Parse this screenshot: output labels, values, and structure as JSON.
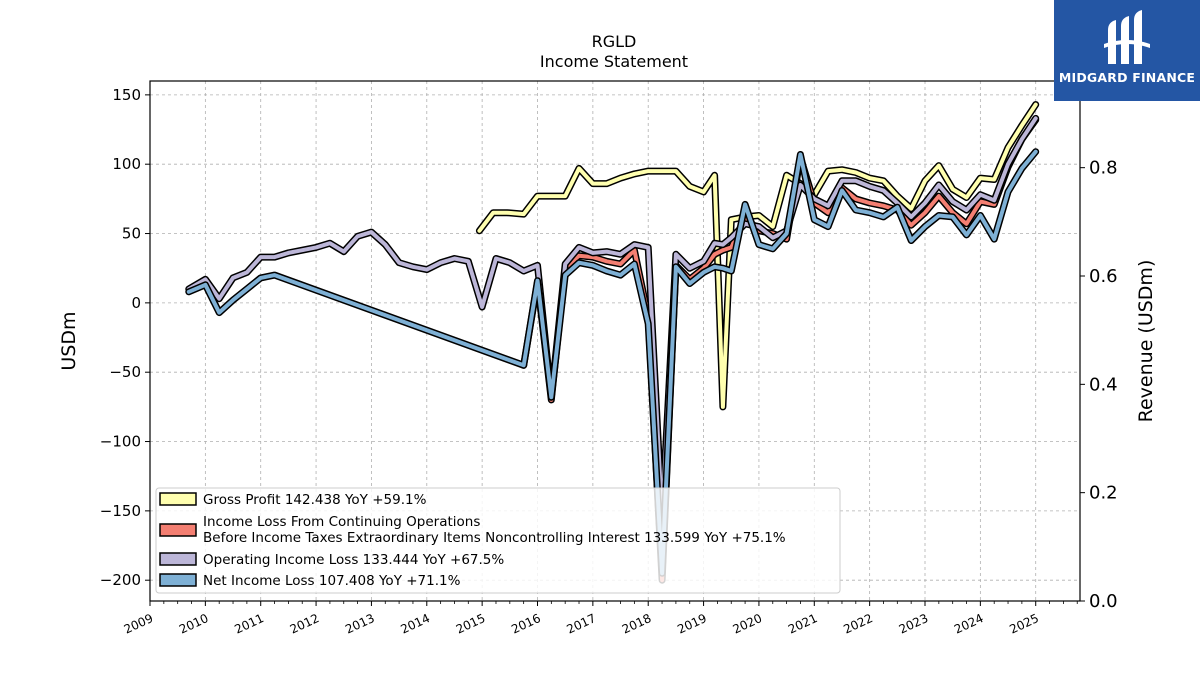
{
  "brand": {
    "name": "MIDGARD FINANCE",
    "color": "#2456a4"
  },
  "chart_data": {
    "type": "line",
    "title": "RGLD",
    "subtitle": "Income Statement",
    "ylabel": "USDm",
    "y2label": "Revenue (USDm)",
    "ylim": [
      -215,
      160
    ],
    "y2lim": [
      0.0,
      0.96
    ],
    "xlim": [
      2009.0,
      2025.8
    ],
    "yticks": [
      150,
      100,
      50,
      0,
      -50,
      -100,
      -150,
      -200
    ],
    "y2ticks": [
      0.0,
      0.2,
      0.4,
      0.6,
      0.8
    ],
    "xticks": [
      "2009",
      "2010",
      "2011",
      "2012",
      "2013",
      "2014",
      "2015",
      "2016",
      "2017",
      "2018",
      "2019",
      "2020",
      "2021",
      "2022",
      "2023",
      "2024",
      "2025"
    ],
    "grid": true,
    "legend_position": "lower-left",
    "series": [
      {
        "name": "Gross Profit",
        "legend": "Gross Profit  142.438 YoY +59.1%",
        "color": "#ffffaf",
        "x": [
          2014.95,
          2015.2,
          2015.45,
          2015.75,
          2016.0,
          2016.25,
          2016.5,
          2016.75,
          2017.0,
          2017.25,
          2017.5,
          2017.75,
          2018.0,
          2018.25,
          2018.5,
          2018.75,
          2019.0,
          2019.2,
          2019.35,
          2019.5,
          2019.75,
          2020.0,
          2020.25,
          2020.5,
          2020.75,
          2021.0,
          2021.25,
          2021.5,
          2021.75,
          2022.0,
          2022.25,
          2022.5,
          2022.75,
          2023.0,
          2023.25,
          2023.5,
          2023.75,
          2024.0,
          2024.25,
          2024.5,
          2024.75,
          2025.0
        ],
        "y": [
          52,
          65,
          65,
          64,
          77,
          77,
          77,
          97,
          86,
          86,
          90,
          93,
          95,
          95,
          95,
          84,
          80,
          92,
          -75,
          60,
          62,
          63,
          55,
          92,
          86,
          78,
          95,
          96,
          94,
          90,
          88,
          77,
          68,
          88,
          99,
          82,
          76,
          90,
          89,
          112,
          128,
          143
        ]
      },
      {
        "name": "Income Loss From Continuing Operations Before Income Taxes Extraordinary Items Noncontrolling Interest",
        "legend_lines": [
          "Income Loss From Continuing Operations",
          "Before Income Taxes Extraordinary Items Noncontrolling Interest  133.599 YoY +75.1%"
        ],
        "color": "#f47f72",
        "x": [
          2015.75,
          2016.0,
          2016.25,
          2016.5,
          2016.75,
          2017.0,
          2017.25,
          2017.5,
          2017.75,
          2018.0,
          2018.25,
          2018.5,
          2018.75,
          2019.0,
          2019.2,
          2019.35,
          2019.5,
          2019.75,
          2020.0,
          2020.25,
          2020.5,
          2020.75,
          2021.0,
          2021.25,
          2021.5,
          2021.75,
          2022.0,
          2022.25,
          2022.5,
          2022.75,
          2023.0,
          2023.25,
          2023.5,
          2023.75,
          2024.0,
          2024.25,
          2024.5,
          2024.75,
          2025.0
        ],
        "y": [
          -45,
          15,
          -70,
          25,
          34,
          33,
          30,
          28,
          38,
          -10,
          -200,
          27,
          17,
          25,
          35,
          38,
          40,
          62,
          52,
          50,
          46,
          105,
          72,
          65,
          83,
          75,
          72,
          70,
          67,
          56,
          65,
          77,
          65,
          57,
          73,
          71,
          98,
          118,
          132
        ]
      },
      {
        "name": "Operating Income Loss",
        "legend": "Operating Income Loss  133.444 YoY +67.5%",
        "color": "#bcb6d8",
        "x": [
          2009.7,
          2010.0,
          2010.25,
          2010.5,
          2010.75,
          2011.0,
          2011.25,
          2011.5,
          2011.75,
          2012.0,
          2012.25,
          2012.5,
          2012.75,
          2013.0,
          2013.25,
          2013.5,
          2013.75,
          2014.0,
          2014.25,
          2014.5,
          2014.75,
          2015.0,
          2015.25,
          2015.5,
          2015.75,
          2016.0,
          2016.25,
          2016.5,
          2016.75,
          2017.0,
          2017.25,
          2017.5,
          2017.75,
          2018.0,
          2018.25,
          2018.5,
          2018.75,
          2019.0,
          2019.2,
          2019.35,
          2019.5,
          2019.75,
          2020.0,
          2020.25,
          2020.5,
          2020.75,
          2021.0,
          2021.25,
          2021.5,
          2021.75,
          2022.0,
          2022.25,
          2022.5,
          2022.75,
          2023.0,
          2023.25,
          2023.5,
          2023.75,
          2024.0,
          2024.25,
          2024.5,
          2024.75,
          2025.0
        ],
        "y": [
          10,
          17,
          3,
          18,
          22,
          33,
          33,
          36,
          38,
          40,
          43,
          37,
          48,
          51,
          42,
          29,
          26,
          24,
          29,
          32,
          30,
          -3,
          32,
          29,
          23,
          27,
          -68,
          28,
          40,
          36,
          37,
          35,
          42,
          40,
          -155,
          35,
          25,
          30,
          43,
          42,
          47,
          57,
          55,
          47,
          52,
          85,
          75,
          70,
          88,
          88,
          84,
          81,
          72,
          62,
          72,
          85,
          73,
          67,
          78,
          74,
          100,
          118,
          133
        ]
      },
      {
        "name": "Net Income Loss",
        "legend": "Net Income Loss  107.408 YoY +71.1%",
        "color": "#7eb0d5",
        "x": [
          2009.7,
          2010.0,
          2010.25,
          2010.5,
          2010.75,
          2011.0,
          2011.25,
          2015.75,
          2016.0,
          2016.25,
          2016.5,
          2016.75,
          2017.0,
          2017.25,
          2017.5,
          2017.75,
          2018.0,
          2018.25,
          2018.5,
          2018.75,
          2019.0,
          2019.2,
          2019.35,
          2019.5,
          2019.75,
          2020.0,
          2020.25,
          2020.5,
          2020.75,
          2021.0,
          2021.25,
          2021.5,
          2021.75,
          2022.0,
          2022.25,
          2022.5,
          2022.75,
          2023.0,
          2023.25,
          2023.5,
          2023.75,
          2024.0,
          2024.25,
          2024.5,
          2024.75,
          2025.0
        ],
        "y": [
          8,
          13,
          -7,
          2,
          10,
          18,
          20,
          -45,
          16,
          -68,
          20,
          29,
          27,
          23,
          20,
          28,
          -15,
          -195,
          26,
          14,
          22,
          26,
          25,
          23,
          71,
          42,
          39,
          50,
          107,
          60,
          55,
          81,
          67,
          65,
          62,
          69,
          45,
          55,
          63,
          62,
          49,
          63,
          46,
          80,
          97,
          109
        ]
      }
    ]
  }
}
